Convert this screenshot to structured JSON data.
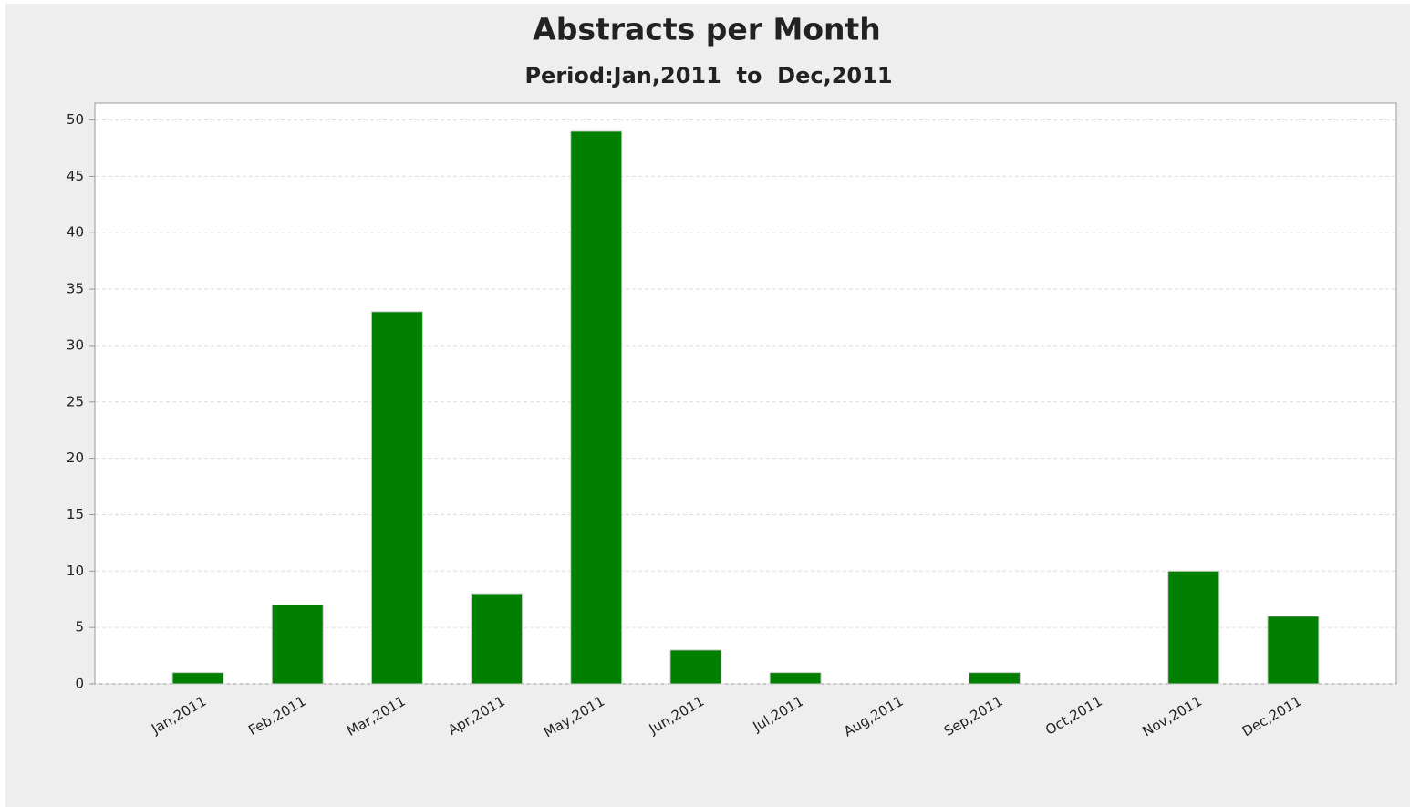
{
  "chart_data": {
    "type": "bar",
    "title": "Abstracts per Month",
    "subtitle": "Period:Jan,2011  to  Dec,2011",
    "categories": [
      "Jan,2011",
      "Feb,2011",
      "Mar,2011",
      "Apr,2011",
      "May,2011",
      "Jun,2011",
      "Jul,2011",
      "Aug,2011",
      "Sep,2011",
      "Oct,2011",
      "Nov,2011",
      "Dec,2011"
    ],
    "values": [
      1,
      7,
      33,
      8,
      49,
      3,
      1,
      0,
      1,
      0,
      10,
      6
    ],
    "color": "#007f00",
    "ylim": [
      0,
      51.5
    ],
    "yticks": [
      0,
      5,
      10,
      15,
      20,
      25,
      30,
      35,
      40,
      45,
      50
    ],
    "grid": true
  }
}
